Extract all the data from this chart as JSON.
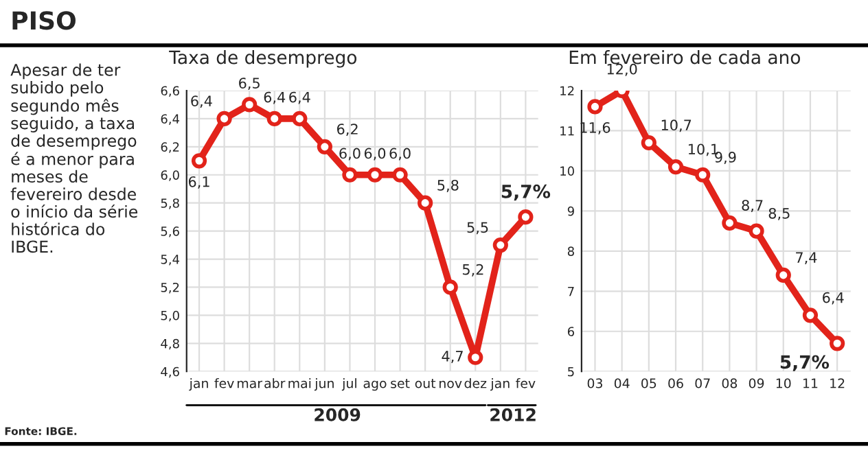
{
  "chart_data": [
    {
      "type": "other",
      "title": "PISO",
      "annotations": [
        "Apesar de ter\nsubido pelo\nsegundo mês\nseguido, a taxa\nde desemprego\né a menor para\nmeses de\nfevereiro desde\no início da série\nhistórica do\nIBGE.",
        "Fonte: IBGE."
      ]
    },
    {
      "type": "line",
      "title": "Taxa de desemprego",
      "categories": [
        "jan",
        "fev",
        "mar",
        "abr",
        "mai",
        "jun",
        "jul",
        "ago",
        "set",
        "out",
        "nov",
        "dez",
        "jan",
        "fev"
      ],
      "series": [
        {
          "color": "#e2231a",
          "values": [
            6.1,
            6.4,
            6.5,
            6.4,
            6.4,
            6.2,
            6.0,
            6.0,
            6.0,
            5.8,
            5.2,
            4.7,
            5.5,
            5.7
          ]
        }
      ],
      "value_labels": [
        "6,1",
        "6,4",
        "6,5",
        "6,4",
        "6,4",
        "6,2",
        "6,0",
        "6,0",
        "6,0",
        "5,8",
        "5,2",
        "4,7",
        "5,5",
        "5,7%"
      ],
      "ylim": [
        4.6,
        6.6
      ],
      "yticks": [
        {
          "value": 4.6,
          "label": "4,6"
        },
        {
          "value": 4.8,
          "label": "4,8"
        },
        {
          "value": 5.0,
          "label": "5,0"
        },
        {
          "value": 5.2,
          "label": "5,2"
        },
        {
          "value": 5.4,
          "label": "5,4"
        },
        {
          "value": 5.6,
          "label": "5,6"
        },
        {
          "value": 5.8,
          "label": "5,8"
        },
        {
          "value": 6.0,
          "label": "6,0"
        },
        {
          "value": 6.2,
          "label": "6,2"
        },
        {
          "value": 6.4,
          "label": "6,4"
        },
        {
          "value": 6.6,
          "label": "6,6"
        }
      ],
      "annotations": [
        "2009",
        "2012"
      ],
      "grid": true,
      "marker": "circle",
      "line_style": "solid",
      "legend": false
    },
    {
      "type": "line",
      "title": "Em fevereiro de cada ano",
      "categories": [
        "03",
        "04",
        "05",
        "06",
        "07",
        "08",
        "09",
        "10",
        "11",
        "12"
      ],
      "series": [
        {
          "color": "#e2231a",
          "values": [
            11.6,
            12.0,
            10.7,
            10.1,
            9.9,
            8.7,
            8.5,
            7.4,
            6.4,
            5.7
          ]
        }
      ],
      "value_labels": [
        "11,6",
        "12,0",
        "10,7",
        "10,1",
        "9,9",
        "8,7",
        "8,5",
        "7,4",
        "6,4",
        "5,7%"
      ],
      "ylim": [
        5,
        12
      ],
      "yticks": [
        5,
        6,
        7,
        8,
        9,
        10,
        11,
        12
      ],
      "grid": true,
      "marker": "circle",
      "line_style": "solid",
      "legend": false
    }
  ]
}
